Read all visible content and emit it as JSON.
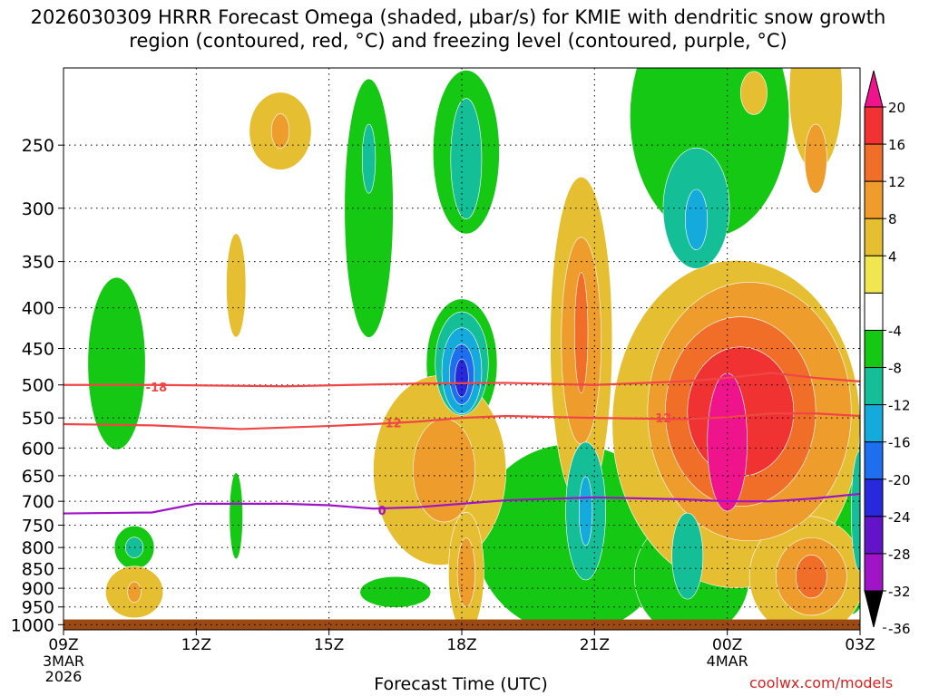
{
  "chart_data": {
    "type": "heatmap",
    "title": "2026030309 HRRR Forecast Omega (shaded, µbar/s) for KMIE with dendritic snow growth region (contoured, red, °C) and freezing level (contoured, purple, °C)",
    "xlabel": "Forecast Time (UTC)",
    "ylabel": "",
    "x_ticks": [
      {
        "hour": 0,
        "label": "09Z",
        "sub": [
          "3MAR",
          "2026"
        ]
      },
      {
        "hour": 3,
        "label": "12Z",
        "sub": []
      },
      {
        "hour": 6,
        "label": "15Z",
        "sub": []
      },
      {
        "hour": 9,
        "label": "18Z",
        "sub": []
      },
      {
        "hour": 12,
        "label": "21Z",
        "sub": []
      },
      {
        "hour": 15,
        "label": "00Z",
        "sub": [
          "4MAR"
        ]
      },
      {
        "hour": 18,
        "label": "03Z",
        "sub": []
      }
    ],
    "xlim_hours": [
      0,
      18
    ],
    "y_ticks": [
      250,
      300,
      350,
      400,
      450,
      500,
      550,
      600,
      650,
      700,
      750,
      800,
      850,
      900,
      950,
      1000
    ],
    "ylim_hpa": [
      200,
      1015
    ],
    "ground_pressure_hpa": 985,
    "colorbar": {
      "labels": [
        "20",
        "16",
        "12",
        "8",
        "4",
        "-4",
        "-8",
        "-12",
        "-16",
        "-20",
        "-24",
        "-28",
        "-32",
        "-36"
      ],
      "bins": [
        {
          "from": 20,
          "to": 24,
          "color": "#f0148c"
        },
        {
          "from": 16,
          "to": 20,
          "color": "#f03232"
        },
        {
          "from": 12,
          "to": 16,
          "color": "#f06e28"
        },
        {
          "from": 8,
          "to": 12,
          "color": "#ee9c2c"
        },
        {
          "from": 4,
          "to": 8,
          "color": "#e6be32"
        },
        {
          "from": 0,
          "to": 4,
          "color": "#f0e650"
        },
        {
          "from": -4,
          "to": 4,
          "color": "#ffffff"
        },
        {
          "from": -8,
          "to": -4,
          "color": "#14c814"
        },
        {
          "from": -12,
          "to": -8,
          "color": "#14be96"
        },
        {
          "from": -16,
          "to": -12,
          "color": "#14aadc"
        },
        {
          "from": -20,
          "to": -16,
          "color": "#1e6ef0"
        },
        {
          "from": -24,
          "to": -20,
          "color": "#2828dc"
        },
        {
          "from": -28,
          "to": -24,
          "color": "#6414c8"
        },
        {
          "from": -32,
          "to": -28,
          "color": "#a014c8"
        },
        {
          "from": -36,
          "to": -32,
          "color": "#aaaaaa"
        }
      ]
    },
    "contours": [
      {
        "name": "dgz-top",
        "value": "-18",
        "color": "#f04646",
        "points": [
          [
            0,
            500
          ],
          [
            2,
            500
          ],
          [
            5,
            502
          ],
          [
            8,
            498
          ],
          [
            10,
            497
          ],
          [
            12,
            500
          ],
          [
            14,
            495
          ],
          [
            15,
            490
          ],
          [
            16,
            483
          ],
          [
            17,
            490
          ],
          [
            18,
            495
          ]
        ],
        "labels": [
          {
            "hour": 2.1,
            "hpa": 503
          }
        ]
      },
      {
        "name": "dgz-bottom",
        "value": "-12",
        "color": "#f04646",
        "points": [
          [
            0,
            560
          ],
          [
            2,
            562
          ],
          [
            4,
            568
          ],
          [
            6,
            563
          ],
          [
            7,
            560
          ],
          [
            8,
            556
          ],
          [
            9,
            550
          ],
          [
            10,
            547
          ],
          [
            12,
            550
          ],
          [
            14,
            552
          ],
          [
            15,
            549
          ],
          [
            16,
            543
          ],
          [
            17,
            543
          ],
          [
            18,
            547
          ]
        ],
        "labels": [
          {
            "hour": 7.4,
            "hpa": 558
          },
          {
            "hour": 13.5,
            "hpa": 550
          }
        ]
      },
      {
        "name": "freezing-level",
        "value": "0",
        "color": "#a014c8",
        "points": [
          [
            0,
            725
          ],
          [
            2,
            723
          ],
          [
            3,
            705
          ],
          [
            5,
            705
          ],
          [
            6,
            708
          ],
          [
            7,
            715
          ],
          [
            8,
            712
          ],
          [
            9,
            705
          ],
          [
            10,
            698
          ],
          [
            12,
            692
          ],
          [
            14,
            696
          ],
          [
            15,
            700
          ],
          [
            16,
            700
          ],
          [
            17,
            694
          ],
          [
            18,
            685
          ]
        ],
        "labels": [
          {
            "hour": 7.2,
            "hpa": 718
          }
        ]
      }
    ],
    "regions": [
      {
        "value": -6,
        "hour": 1.2,
        "hpa": 470,
        "rh": 0.65,
        "rp": 100
      },
      {
        "value": -6,
        "hour": 6.9,
        "hpa": 300,
        "rh": 0.55,
        "rp": 150
      },
      {
        "value": -12,
        "hour": 6.9,
        "hpa": 260,
        "rh": 0.15,
        "rp": 40
      },
      {
        "value": -6,
        "hour": 9.1,
        "hpa": 255,
        "rh": 0.75,
        "rp": 95
      },
      {
        "value": -12,
        "hour": 9.1,
        "hpa": 260,
        "rh": 0.35,
        "rp": 70
      },
      {
        "value": -6,
        "hour": 9.0,
        "hpa": 470,
        "rh": 0.8,
        "rp": 75
      },
      {
        "value": -12,
        "hour": 9.0,
        "hpa": 470,
        "rh": 0.6,
        "rp": 60
      },
      {
        "value": -16,
        "hour": 9.0,
        "hpa": 480,
        "rh": 0.45,
        "rp": 50
      },
      {
        "value": -20,
        "hour": 9.0,
        "hpa": 485,
        "rh": 0.28,
        "rp": 35
      },
      {
        "value": -24,
        "hour": 9.0,
        "hpa": 490,
        "rh": 0.15,
        "rp": 22
      },
      {
        "value": -6,
        "hour": 11.5,
        "hpa": 780,
        "rh": 2.2,
        "rp": 110
      },
      {
        "value": -12,
        "hour": 11.8,
        "hpa": 720,
        "rh": 0.45,
        "rp": 80
      },
      {
        "value": -16,
        "hour": 11.8,
        "hpa": 720,
        "rh": 0.15,
        "rp": 40
      },
      {
        "value": -6,
        "hour": 1.6,
        "hpa": 800,
        "rh": 0.45,
        "rp": 25
      },
      {
        "value": -12,
        "hour": 1.6,
        "hpa": 800,
        "rh": 0.2,
        "rp": 12
      },
      {
        "value": -6,
        "hour": 3.9,
        "hpa": 730,
        "rh": 0.15,
        "rp": 50
      },
      {
        "value": -6,
        "hour": 7.5,
        "hpa": 910,
        "rh": 0.8,
        "rp": 18
      },
      {
        "value": -6,
        "hour": 14.6,
        "hpa": 230,
        "rh": 1.8,
        "rp": 140
      },
      {
        "value": -12,
        "hour": 14.3,
        "hpa": 300,
        "rh": 0.75,
        "rp": 70
      },
      {
        "value": -16,
        "hour": 14.3,
        "hpa": 310,
        "rh": 0.25,
        "rp": 35
      },
      {
        "value": -6,
        "hour": 17.8,
        "hpa": 720,
        "rh": 0.6,
        "rp": 120
      },
      {
        "value": -12,
        "hour": 18.0,
        "hpa": 720,
        "rh": 0.2,
        "rp": 70
      },
      {
        "value": -6,
        "hour": 14.2,
        "hpa": 870,
        "rh": 1.3,
        "rp": 70
      },
      {
        "value": -12,
        "hour": 14.1,
        "hpa": 820,
        "rh": 0.35,
        "rp": 50
      },
      {
        "value": 6,
        "hour": 1.6,
        "hpa": 910,
        "rh": 0.65,
        "rp": 30
      },
      {
        "value": 10,
        "hour": 1.6,
        "hpa": 910,
        "rh": 0.15,
        "rp": 12
      },
      {
        "value": 6,
        "hour": 4.9,
        "hpa": 240,
        "rh": 0.7,
        "rp": 45
      },
      {
        "value": 10,
        "hour": 4.9,
        "hpa": 240,
        "rh": 0.2,
        "rp": 20
      },
      {
        "value": 6,
        "hour": 3.9,
        "hpa": 375,
        "rh": 0.22,
        "rp": 60
      },
      {
        "value": 6,
        "hour": 8.5,
        "hpa": 640,
        "rh": 1.5,
        "rp": 110
      },
      {
        "value": 10,
        "hour": 8.6,
        "hpa": 640,
        "rh": 0.7,
        "rp": 60
      },
      {
        "value": 6,
        "hour": 9.1,
        "hpa": 860,
        "rh": 0.4,
        "rp": 70
      },
      {
        "value": 10,
        "hour": 9.1,
        "hpa": 860,
        "rh": 0.2,
        "rp": 40
      },
      {
        "value": 6,
        "hour": 11.7,
        "hpa": 440,
        "rh": 0.7,
        "rp": 190
      },
      {
        "value": 10,
        "hour": 11.7,
        "hpa": 440,
        "rh": 0.45,
        "rp": 120
      },
      {
        "value": 14,
        "hour": 11.7,
        "hpa": 430,
        "rh": 0.15,
        "rp": 70
      },
      {
        "value": 6,
        "hour": 15.2,
        "hpa": 560,
        "rh": 2.8,
        "rp": 190
      },
      {
        "value": 10,
        "hour": 15.5,
        "hpa": 540,
        "rh": 2.3,
        "rp": 150
      },
      {
        "value": 14,
        "hour": 15.3,
        "hpa": 540,
        "rh": 1.7,
        "rp": 110
      },
      {
        "value": 18,
        "hour": 15.3,
        "hpa": 540,
        "rh": 1.2,
        "rp": 75
      },
      {
        "value": 22,
        "hour": 15.0,
        "hpa": 590,
        "rh": 0.45,
        "rp": 80
      },
      {
        "value": 6,
        "hour": 17.0,
        "hpa": 215,
        "rh": 0.6,
        "rp": 90
      },
      {
        "value": 10,
        "hour": 17.0,
        "hpa": 260,
        "rh": 0.25,
        "rp": 40
      },
      {
        "value": 6,
        "hour": 16.8,
        "hpa": 870,
        "rh": 1.3,
        "rp": 70
      },
      {
        "value": 10,
        "hour": 16.9,
        "hpa": 870,
        "rh": 0.8,
        "rp": 45
      },
      {
        "value": 14,
        "hour": 16.9,
        "hpa": 870,
        "rh": 0.35,
        "rp": 25
      },
      {
        "value": 6,
        "hour": 15.6,
        "hpa": 215,
        "rh": 0.3,
        "rp": 25
      }
    ]
  },
  "credit": "coolwx.com/models"
}
